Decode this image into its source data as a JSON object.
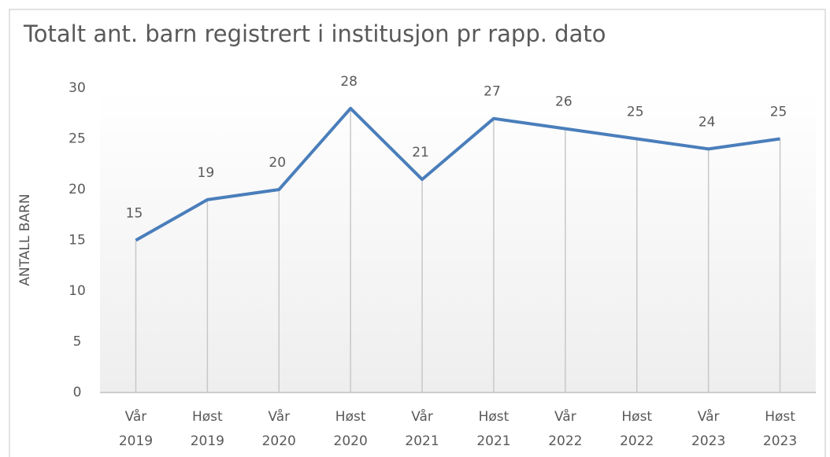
{
  "chart_data": {
    "type": "line",
    "title": "Totalt ant. barn registrert i institusjon pr rapp. dato",
    "y_label": "ANTALL BARN",
    "categories": [
      [
        "Vår",
        "2019"
      ],
      [
        "Høst",
        "2019"
      ],
      [
        "Vår",
        "2020"
      ],
      [
        "Høst",
        "2020"
      ],
      [
        "Vår",
        "2021"
      ],
      [
        "Høst",
        "2021"
      ],
      [
        "Vår",
        "2022"
      ],
      [
        "Høst",
        "2022"
      ],
      [
        "Vår",
        "2023"
      ],
      [
        "Høst",
        "2023"
      ]
    ],
    "series": [
      {
        "name": "Antall barn",
        "color": "#4a7ebb",
        "values": [
          15,
          19,
          20,
          28,
          21,
          27,
          26,
          25,
          24,
          25
        ]
      }
    ],
    "ylim": [
      0,
      30
    ],
    "yticks": [
      0,
      5,
      10,
      15,
      20,
      25,
      30
    ],
    "drop_lines": true,
    "data_labels": true
  }
}
